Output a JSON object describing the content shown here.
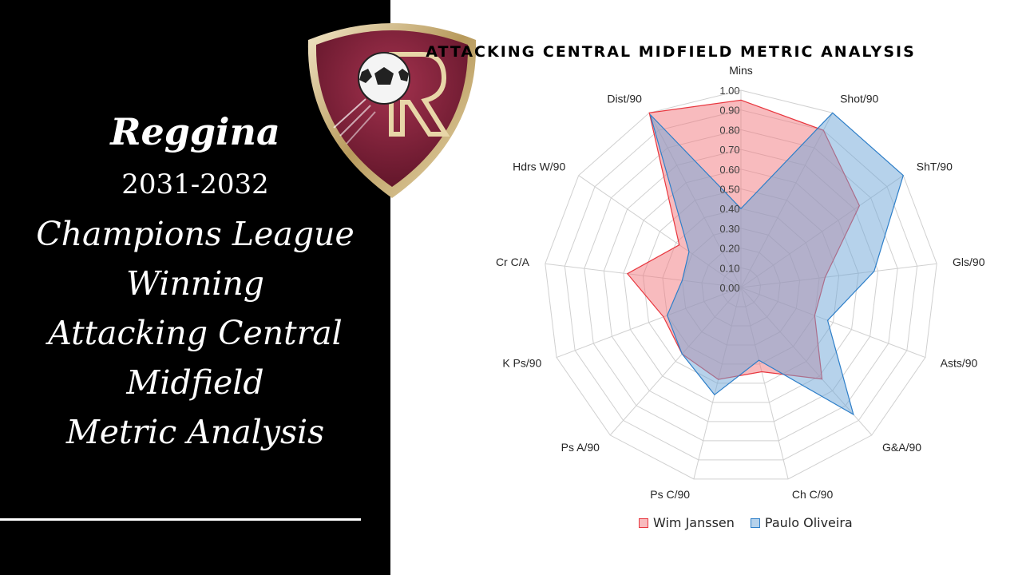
{
  "slide": {
    "title_lines": [
      "Reggina",
      "2031-2032",
      "Champions League",
      "Winning",
      "Attacking Central",
      "Midfield",
      "Metric Analysis"
    ],
    "crest_icon": "reggina-crest-icon"
  },
  "chart_data": {
    "type": "radar",
    "title": "ATTACKING CENTRAL MIDFIELD METRIC ANALYSIS",
    "categories": [
      "Mins",
      "Shot/90",
      "ShT/90",
      "Gls/90",
      "Asts/90",
      "G&A/90",
      "Ch C/90",
      "Ps C/90",
      "Ps A/90",
      "K Ps/90",
      "Cr C/A",
      "Hdrs W/90",
      "Dist/90"
    ],
    "rlim": [
      0,
      1
    ],
    "ticks": [
      "0.00",
      "0.10",
      "0.20",
      "0.30",
      "0.40",
      "0.50",
      "0.60",
      "0.70",
      "0.80",
      "0.90",
      "1.00"
    ],
    "series": [
      {
        "name": "Wim Janssen",
        "color": "#e8373f",
        "fill": "rgba(242,120,125,0.5)",
        "values": [
          0.95,
          0.9,
          0.73,
          0.43,
          0.4,
          0.62,
          0.44,
          0.48,
          0.45,
          0.42,
          0.58,
          0.38,
          1.0
        ]
      },
      {
        "name": "Paulo Oliveira",
        "color": "#2e7fc9",
        "fill": "rgba(110,165,215,0.5)",
        "values": [
          0.4,
          1.0,
          1.0,
          0.68,
          0.47,
          0.86,
          0.38,
          0.56,
          0.45,
          0.4,
          0.3,
          0.32,
          0.99
        ]
      }
    ],
    "grid": true,
    "legend": "bottom"
  }
}
